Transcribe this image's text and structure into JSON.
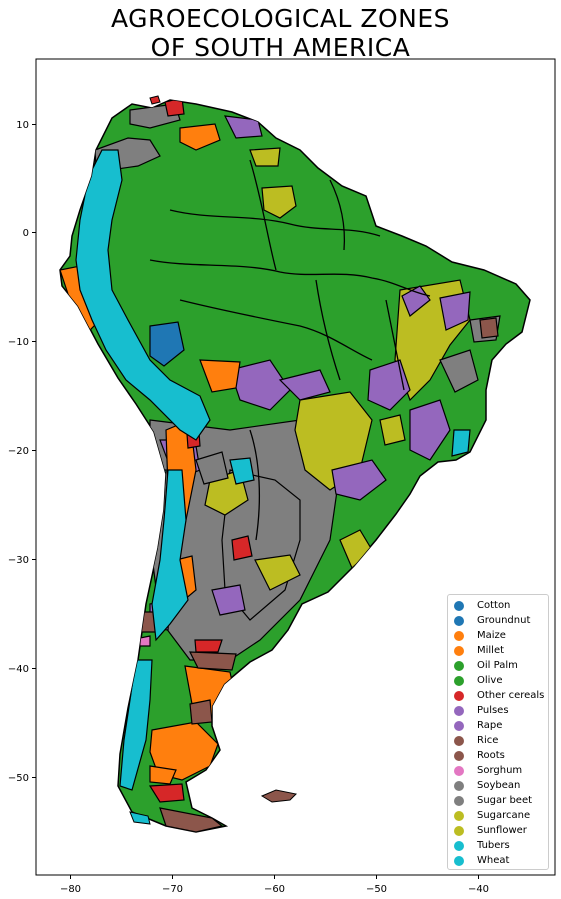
{
  "title": {
    "line1": "AGROECOLOGICAL ZONES",
    "line2": "OF SOUTH AMERICA"
  },
  "axes": {
    "x_ticks": [
      "−80",
      "−70",
      "−60",
      "−50",
      "−40"
    ],
    "y_ticks": [
      "10",
      "0",
      "−10",
      "−20",
      "−30",
      "−40",
      "−50"
    ]
  },
  "map": {
    "type": "choropleth",
    "region": "South America",
    "projection": "lon-lat",
    "x_range_deg": [
      -83.5,
      -32.5
    ],
    "y_range_deg": [
      -59.5,
      16
    ],
    "zone_colors": {
      "green": "#2ca02c",
      "olive": "#bcbd22",
      "cyan": "#17becf",
      "orange": "#ff7f0e",
      "purple": "#9467bd",
      "gray": "#7f7f7f",
      "brown": "#8c564b",
      "red": "#d62728",
      "blue": "#1f77b4",
      "pink": "#e377c2"
    }
  },
  "legend": {
    "items": [
      {
        "label": "Cotton",
        "color": "#1f77b4"
      },
      {
        "label": "Groundnut",
        "color": "#1f77b4"
      },
      {
        "label": "Maize",
        "color": "#ff7f0e"
      },
      {
        "label": "Millet",
        "color": "#ff7f0e"
      },
      {
        "label": "Oil Palm",
        "color": "#2ca02c"
      },
      {
        "label": "Olive",
        "color": "#2ca02c"
      },
      {
        "label": "Other cereals",
        "color": "#d62728"
      },
      {
        "label": "Pulses",
        "color": "#9467bd"
      },
      {
        "label": "Rape",
        "color": "#9467bd"
      },
      {
        "label": "Rice",
        "color": "#8c564b"
      },
      {
        "label": "Roots",
        "color": "#8c564b"
      },
      {
        "label": "Sorghum",
        "color": "#e377c2"
      },
      {
        "label": "Soybean",
        "color": "#7f7f7f"
      },
      {
        "label": "Sugar beet",
        "color": "#7f7f7f"
      },
      {
        "label": "Sugarcane",
        "color": "#bcbd22"
      },
      {
        "label": "Sunflower",
        "color": "#bcbd22"
      },
      {
        "label": "Tubers",
        "color": "#17becf"
      },
      {
        "label": "Wheat",
        "color": "#17becf"
      }
    ]
  }
}
